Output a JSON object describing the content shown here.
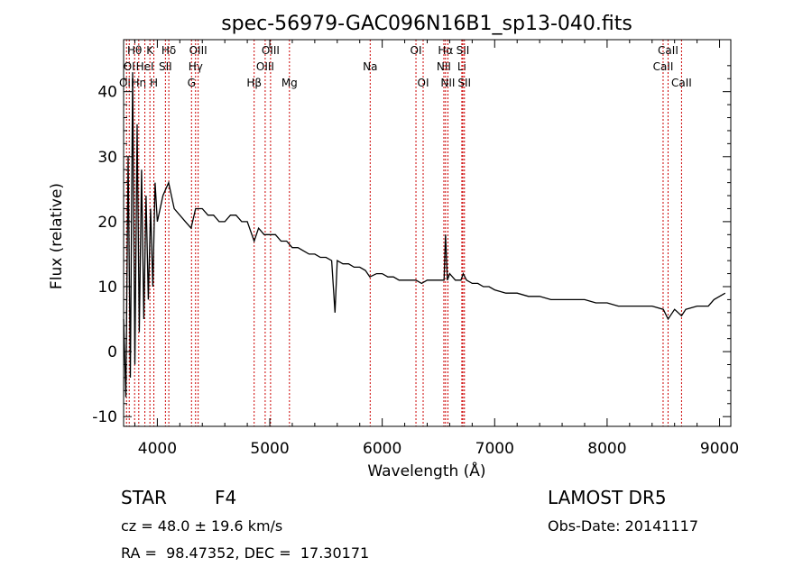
{
  "chart_data": {
    "type": "line",
    "title": "spec-56979-GAC096N16B1_sp13-040.fits",
    "xlabel": "Wavelength (Å)",
    "ylabel": "Flux (relative)",
    "xlim": [
      3700,
      9100
    ],
    "ylim": [
      -11.5,
      48
    ],
    "xticks": [
      4000,
      5000,
      6000,
      7000,
      8000,
      9000
    ],
    "yticks": [
      -10,
      0,
      10,
      20,
      30,
      40
    ],
    "grid": false,
    "series": [
      {
        "x": [
          3700,
          3720,
          3740,
          3760,
          3780,
          3800,
          3820,
          3840,
          3860,
          3880,
          3900,
          3920,
          3940,
          3960,
          3980,
          4000,
          4050,
          4100,
          4150,
          4200,
          4250,
          4300,
          4340,
          4400,
          4450,
          4500,
          4550,
          4600,
          4650,
          4700,
          4750,
          4800,
          4861,
          4900,
          4950,
          5000,
          5050,
          5100,
          5150,
          5200,
          5250,
          5300,
          5350,
          5400,
          5450,
          5500,
          5550,
          5580,
          5600,
          5650,
          5700,
          5750,
          5800,
          5850,
          5890,
          5950,
          6000,
          6050,
          6100,
          6150,
          6200,
          6250,
          6300,
          6350,
          6400,
          6450,
          6500,
          6550,
          6563,
          6580,
          6600,
          6650,
          6700,
          6720,
          6750,
          6800,
          6850,
          6900,
          6950,
          7000,
          7100,
          7200,
          7300,
          7400,
          7500,
          7600,
          7700,
          7800,
          7900,
          8000,
          8100,
          8200,
          8300,
          8400,
          8500,
          8542,
          8600,
          8662,
          8700,
          8800,
          8900,
          8950,
          9000,
          9050
        ],
        "y": [
          5,
          -7,
          30,
          -4,
          43,
          -2,
          35,
          3,
          28,
          5,
          24,
          8,
          22,
          10,
          26,
          20,
          24,
          26,
          22,
          21,
          20,
          19,
          22,
          22,
          21,
          21,
          20,
          20,
          21,
          21,
          20,
          20,
          17,
          19,
          18,
          18,
          18,
          17,
          17,
          16,
          16,
          15.5,
          15,
          15,
          14.5,
          14.5,
          14,
          6,
          14,
          13.5,
          13.5,
          13,
          13,
          12.5,
          11.5,
          12,
          12,
          11.5,
          11.5,
          11,
          11,
          11,
          11,
          10.5,
          11,
          11,
          11,
          11,
          18,
          11,
          12,
          11,
          11,
          12,
          11,
          10.5,
          10.5,
          10,
          10,
          9.5,
          9,
          9,
          8.5,
          8.5,
          8,
          8,
          8,
          8,
          7.5,
          7.5,
          7,
          7,
          7,
          7,
          6.5,
          5,
          6.5,
          5.5,
          6.5,
          7,
          7,
          8,
          8.5,
          9
        ]
      }
    ],
    "line_marks": [
      {
        "wave": 3726,
        "label": "OII",
        "row": 2
      },
      {
        "wave": 3750,
        "label": "OI",
        "row": 1
      },
      {
        "wave": 3798,
        "label": "Hθ",
        "row": 0
      },
      {
        "wave": 3835,
        "label": "Hη",
        "row": 2
      },
      {
        "wave": 3889,
        "label": "HeI",
        "row": 1
      },
      {
        "wave": 3934,
        "label": "K",
        "row": 0
      },
      {
        "wave": 3969,
        "label": "H",
        "row": 2
      },
      {
        "wave": 4072,
        "label": "SII",
        "row": 1
      },
      {
        "wave": 4102,
        "label": "Hδ",
        "row": 0
      },
      {
        "wave": 4304,
        "label": "G",
        "row": 2
      },
      {
        "wave": 4340,
        "label": "Hγ",
        "row": 1
      },
      {
        "wave": 4363,
        "label": "OIII",
        "row": 0
      },
      {
        "wave": 4861,
        "label": "Hβ",
        "row": 2
      },
      {
        "wave": 4959,
        "label": "OIII",
        "row": 1
      },
      {
        "wave": 5007,
        "label": "OIII",
        "row": 0
      },
      {
        "wave": 5175,
        "label": "Mg",
        "row": 2
      },
      {
        "wave": 5893,
        "label": "Na",
        "row": 1
      },
      {
        "wave": 6300,
        "label": "OI",
        "row": 0
      },
      {
        "wave": 6364,
        "label": "OI",
        "row": 2
      },
      {
        "wave": 6548,
        "label": "NII",
        "row": 1
      },
      {
        "wave": 6563,
        "label": "Hα",
        "row": 0
      },
      {
        "wave": 6584,
        "label": "NII",
        "row": 2
      },
      {
        "wave": 6708,
        "label": "Li",
        "row": 1
      },
      {
        "wave": 6717,
        "label": "SII",
        "row": 0
      },
      {
        "wave": 6731,
        "label": "SII",
        "row": 2
      },
      {
        "wave": 8498,
        "label": "CaII",
        "row": 1
      },
      {
        "wave": 8542,
        "label": "CaII",
        "row": 0
      },
      {
        "wave": 8662,
        "label": "CaII",
        "row": 2
      }
    ]
  },
  "info": {
    "class": "STAR",
    "subclass": "F4",
    "survey": "LAMOST DR5",
    "velocity": "cz = 48.0 ± 19.6 km/s",
    "obs_date": "Obs-Date: 20141117",
    "coords": "RA =  98.47352, DEC =  17.30171"
  },
  "colors": {
    "spectrum": "#000000",
    "line_marks": "#cc0000",
    "axes": "#000000"
  }
}
